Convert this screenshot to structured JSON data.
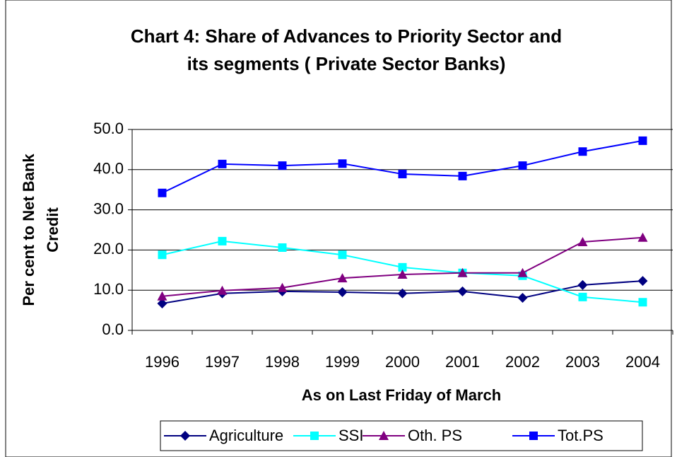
{
  "chart_data": {
    "type": "line",
    "title": [
      "Chart 4: Share of Advances to Priority Sector  and",
      "its segments ( Private Sector Banks)"
    ],
    "x_label": "As on Last Friday of March",
    "y_label": [
      "Per cent to Net Bank",
      "Credit"
    ],
    "categories": [
      "1996",
      "1997",
      "1998",
      "1999",
      "2000",
      "2001",
      "2002",
      "2003",
      "2004"
    ],
    "series": [
      {
        "name": "Agriculture",
        "color": "#000080",
        "marker": "diamond",
        "values": [
          6.7,
          9.2,
          9.7,
          9.5,
          9.2,
          9.7,
          8.1,
          11.3,
          12.3
        ]
      },
      {
        "name": "SSI",
        "color": "#00ffff",
        "marker": "square",
        "values": [
          18.8,
          22.2,
          20.6,
          18.8,
          15.7,
          14.3,
          13.6,
          8.3,
          7.0
        ]
      },
      {
        "name": "Oth. PS",
        "color": "#800080",
        "marker": "triangle",
        "values": [
          8.5,
          9.9,
          10.6,
          13.0,
          13.9,
          14.3,
          14.3,
          22.0,
          23.1
        ]
      },
      {
        "name": "Tot.PS",
        "color": "#0000ff",
        "marker": "square",
        "values": [
          34.2,
          41.4,
          41.0,
          41.5,
          38.9,
          38.4,
          41.0,
          44.5,
          47.2
        ]
      }
    ],
    "ylim": [
      0,
      50
    ],
    "yticks": [
      {
        "value": 0,
        "label": "0.0"
      },
      {
        "value": 10,
        "label": "10.0"
      },
      {
        "value": 20,
        "label": "20.0"
      },
      {
        "value": 30,
        "label": "30.0"
      },
      {
        "value": 40,
        "label": "40.0"
      },
      {
        "value": 50,
        "label": "50.0"
      }
    ],
    "grid": true,
    "legend": "bottom"
  }
}
